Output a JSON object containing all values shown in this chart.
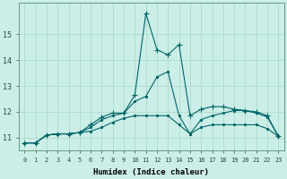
{
  "xlabel": "Humidex (Indice chaleur)",
  "background_color": "#cceee8",
  "grid_color": "#aaddcc",
  "line_color": "#006666",
  "xlim": [
    -0.5,
    23.5
  ],
  "ylim": [
    10.5,
    16.2
  ],
  "yticks": [
    11,
    12,
    13,
    14,
    15
  ],
  "xticks": [
    0,
    1,
    2,
    3,
    4,
    5,
    6,
    7,
    8,
    9,
    10,
    11,
    12,
    13,
    14,
    15,
    16,
    17,
    18,
    19,
    20,
    21,
    22,
    23
  ],
  "series": [
    [
      10.8,
      10.8,
      11.1,
      11.15,
      11.15,
      11.2,
      11.25,
      11.4,
      11.6,
      11.75,
      11.85,
      11.85,
      11.85,
      11.85,
      11.5,
      11.15,
      11.4,
      11.5,
      11.5,
      11.5,
      11.5,
      11.5,
      11.35,
      11.05
    ],
    [
      10.8,
      10.8,
      11.1,
      11.15,
      11.15,
      11.2,
      11.4,
      11.7,
      11.85,
      11.95,
      12.4,
      12.6,
      13.35,
      13.55,
      11.85,
      11.15,
      11.7,
      11.85,
      11.95,
      12.05,
      12.05,
      11.95,
      11.8,
      11.05
    ],
    [
      10.8,
      10.8,
      11.1,
      11.15,
      11.15,
      11.2,
      11.5,
      11.8,
      11.95,
      11.95,
      12.65,
      15.8,
      14.4,
      14.2,
      14.6,
      11.85,
      12.1,
      12.2,
      12.2,
      12.1,
      12.05,
      12.0,
      11.85,
      11.05
    ]
  ],
  "marker_series": 2
}
